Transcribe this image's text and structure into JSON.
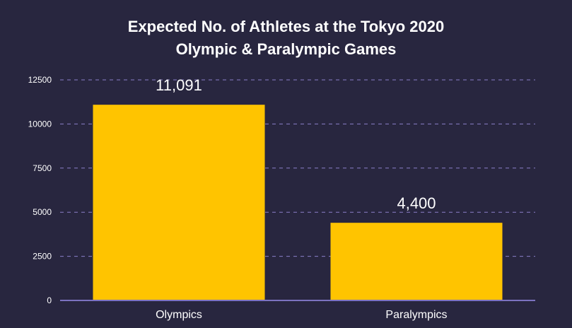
{
  "chart_data": {
    "type": "bar",
    "title": [
      "Expected No. of Athletes at the Tokyo 2020",
      "Olympic & Paralympic Games"
    ],
    "categories": [
      "Olympics",
      "Paralympics"
    ],
    "values": [
      11091,
      4400
    ],
    "data_labels": [
      "11,091",
      "4,400"
    ],
    "ylim": [
      0,
      12500
    ],
    "yticks": [
      "0",
      "2500",
      "5000",
      "7500",
      "10000",
      "12500"
    ],
    "ytick_values": [
      0,
      2500,
      5000,
      7500,
      10000,
      12500
    ],
    "grid": true,
    "legend": "none",
    "colors": {
      "background": "#28263f",
      "bar": "#ffc400",
      "grid": "#8a7fc9",
      "axis": "#7c72c0",
      "text": "#ffffff"
    }
  }
}
